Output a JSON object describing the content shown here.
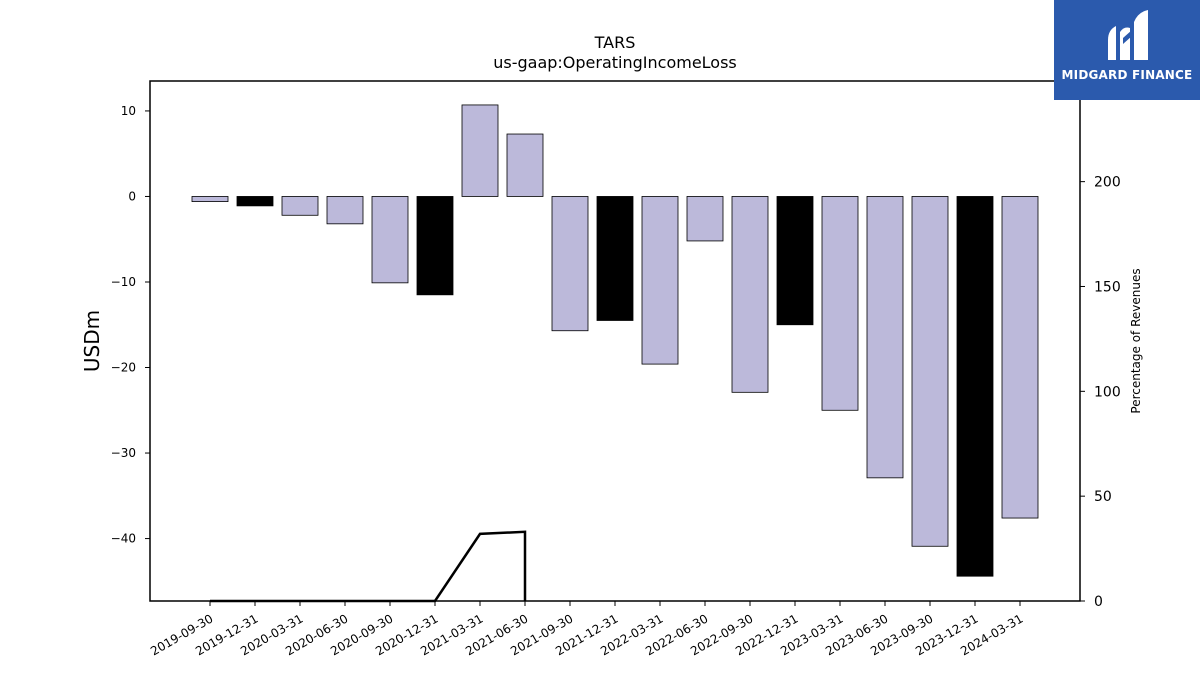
{
  "chart_data": {
    "type": "bar",
    "title": "TARS",
    "subtitle": "us-gaap:OperatingIncomeLoss",
    "ylabel": "USDm",
    "y2label": "Percentage of Revenues",
    "categories": [
      "2019-09-30",
      "2019-12-31",
      "2020-03-31",
      "2020-06-30",
      "2020-09-30",
      "2020-12-31",
      "2021-03-31",
      "2021-06-30",
      "2021-09-30",
      "2021-12-31",
      "2022-03-31",
      "2022-06-30",
      "2022-09-30",
      "2022-12-31",
      "2023-03-31",
      "2023-06-30",
      "2023-09-30",
      "2023-12-31",
      "2024-03-31"
    ],
    "values": [
      -0.6,
      -1.1,
      -2.2,
      -3.2,
      -10.1,
      -11.5,
      10.7,
      7.3,
      -15.7,
      -14.5,
      -19.6,
      -5.2,
      -22.9,
      -15.0,
      -25.0,
      -32.9,
      -40.9,
      -44.4,
      -37.6
    ],
    "bar_fill": [
      "lavender",
      "black",
      "lavender",
      "lavender",
      "lavender",
      "black",
      "lavender",
      "lavender",
      "lavender",
      "black",
      "lavender",
      "lavender",
      "lavender",
      "black",
      "lavender",
      "lavender",
      "lavender",
      "black",
      "lavender"
    ],
    "colors": {
      "lavender": "#bcb9da",
      "black": "#000000"
    },
    "ylim": [
      -47.3,
      13.5
    ],
    "yticks": [
      10,
      0,
      -10,
      -20,
      -30,
      -40
    ],
    "y2lim": [
      0,
      248
    ],
    "y2ticks": [
      0,
      50,
      100,
      150,
      200
    ],
    "line_series": {
      "name": "Percentage of Revenues",
      "points": [
        [
          0,
          0
        ],
        [
          1,
          0
        ],
        [
          2,
          0
        ],
        [
          3,
          0
        ],
        [
          4,
          0
        ],
        [
          5,
          0
        ],
        [
          6,
          32
        ],
        [
          7,
          33
        ],
        [
          7,
          0
        ]
      ]
    }
  },
  "logo": {
    "text": "MIDGARD FINANCE",
    "bg": "#2b5aad",
    "fg": "#ffffff"
  }
}
